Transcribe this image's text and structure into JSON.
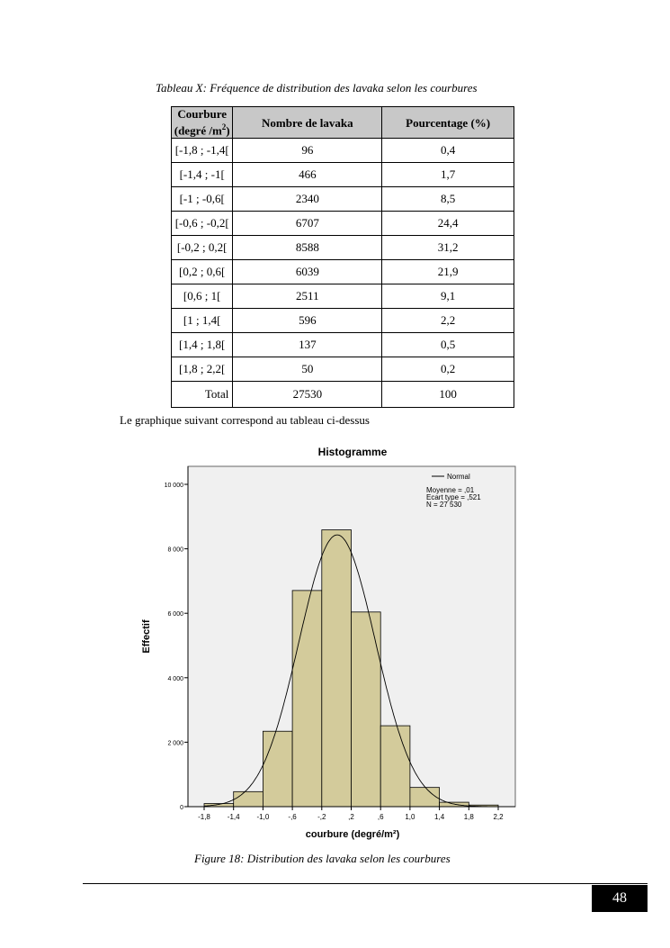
{
  "table": {
    "caption": "Tableau X: Fréquence de distribution des lavaka selon les courbures",
    "headers": {
      "c1a": "Courbure",
      "c1b": "(degré /m",
      "c1sup": "2",
      "c1c": ")",
      "c2": "Nombre de lavaka",
      "c3": "Pourcentage (%)"
    },
    "rows": [
      [
        "[-1,8 ; -1,4[",
        "96",
        "0,4"
      ],
      [
        "[-1,4 ; -1[",
        "466",
        "1,7"
      ],
      [
        "[-1 ; -0,6[",
        "2340",
        "8,5"
      ],
      [
        "[-0,6 ; -0,2[",
        "6707",
        "24,4"
      ],
      [
        "[-0,2 ; 0,2[",
        "8588",
        "31,2"
      ],
      [
        "[0,2 ; 0,6[",
        "6039",
        "21,9"
      ],
      [
        "[0,6 ; 1[",
        "2511",
        "9,1"
      ],
      [
        "[1 ; 1,4[",
        "596",
        "2,2"
      ],
      [
        "[1,4 ; 1,8[",
        "137",
        "0,5"
      ],
      [
        "[1,8 ; 2,2[",
        "50",
        "0,2"
      ]
    ],
    "total": [
      "Total",
      "27530",
      "100"
    ]
  },
  "intro_text": "Le graphique suivant correspond au tableau ci-dessus",
  "chart_data": {
    "type": "bar",
    "title": "Histogramme",
    "xlabel": "courbure (degré/m²)",
    "ylabel": "Effectif",
    "bin_edges": [
      -1.8,
      -1.4,
      -1.0,
      -0.6,
      -0.2,
      0.2,
      0.6,
      1.0,
      1.4,
      1.8,
      2.2
    ],
    "values": [
      96,
      466,
      2340,
      6707,
      8588,
      6039,
      2511,
      596,
      137,
      50
    ],
    "x_ticks": [
      "-1,8",
      "-1,4",
      "-1,0",
      "-,6",
      "-,2",
      ",2",
      ",6",
      "1,0",
      "1,4",
      "1,8",
      "2,2"
    ],
    "y_ticks": [
      {
        "v": 0,
        "label": "0"
      },
      {
        "v": 2000,
        "label": "2 000"
      },
      {
        "v": 4000,
        "label": "4 000"
      },
      {
        "v": 6000,
        "label": "6 000"
      },
      {
        "v": 8000,
        "label": "8 000"
      },
      {
        "v": 10000,
        "label": "10 000"
      }
    ],
    "xlim": [
      -2.025,
      2.5
    ],
    "ylim": [
      0,
      10560
    ],
    "legend": {
      "series": "Normal",
      "position": "top-right",
      "stats": [
        "Moyenne = ,01",
        "Ecart type = ,521",
        "N = 27 530"
      ]
    },
    "normal": {
      "mean": 0.01,
      "sd": 0.521,
      "n": 27530
    },
    "colors": {
      "bar": "#d3cb9b",
      "plot_bg": "#f0f0f0"
    }
  },
  "figure_caption": "Figure 18: Distribution des lavaka selon les courbures",
  "page_number": "48"
}
